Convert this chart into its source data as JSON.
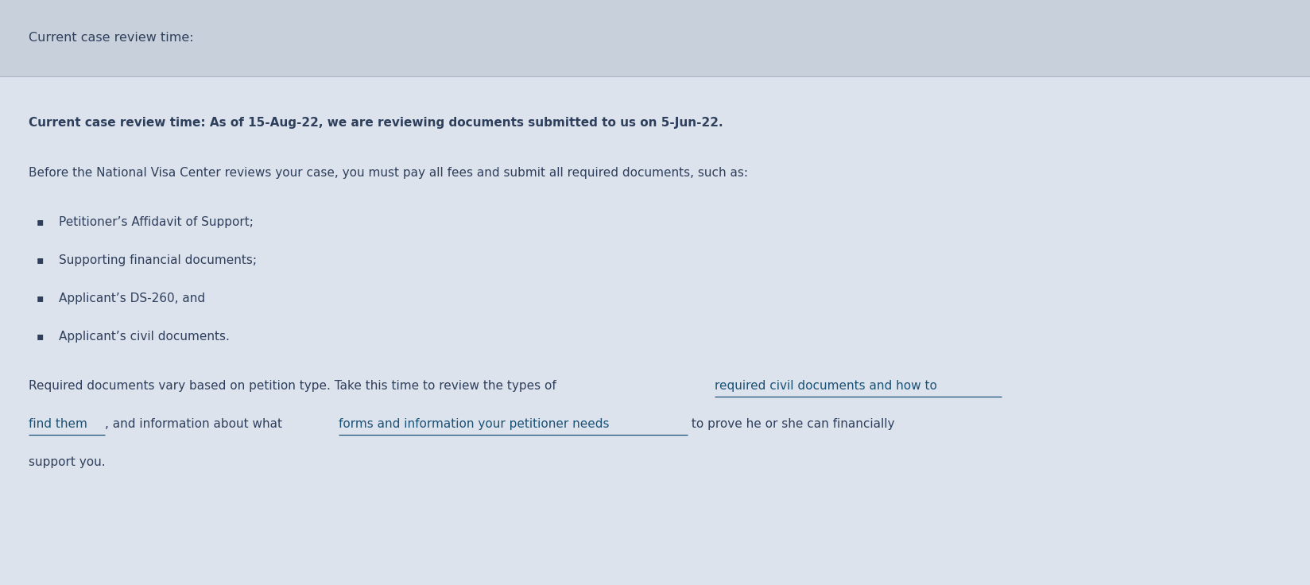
{
  "header_text": "Current case review time:",
  "header_bg": "#c8d0dc",
  "body_bg": "#dde3ed",
  "header_text_color": "#2e3f5c",
  "body_text_color": "#2e3f5c",
  "link_color": "#1a5276",
  "bold_line": "Current case review time: As of 15-Aug-22, we are reviewing documents submitted to us on 5-Jun-22.",
  "intro_line": "Before the National Visa Center reviews your case, you must pay all fees and submit all required documents, such as:",
  "bullet_items": [
    "Petitioner’s Affidavit of Support;",
    "Supporting financial documents;",
    "Applicant’s DS-260, and",
    "Applicant’s civil documents."
  ],
  "header_font_size": 11.5,
  "body_font_size": 11.0,
  "figsize": [
    16.48,
    7.36
  ],
  "dpi": 100
}
